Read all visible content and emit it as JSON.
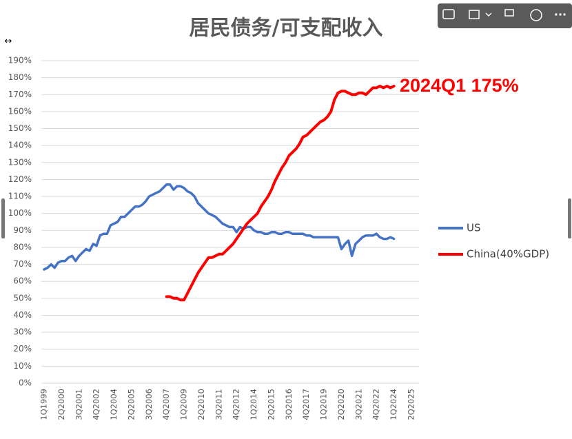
{
  "chart_data": {
    "type": "line",
    "title": "居民债务/可支配收入",
    "annotation": "2024Q1 175%",
    "categories": [
      "1Q1999",
      null,
      null,
      null,
      null,
      "2Q2000",
      null,
      null,
      null,
      null,
      "3Q2001",
      null,
      null,
      null,
      null,
      "4Q2002",
      null,
      null,
      null,
      null,
      "1Q2004",
      null,
      null,
      null,
      null,
      "2Q2005",
      null,
      null,
      null,
      null,
      "3Q2006",
      null,
      null,
      null,
      null,
      "4Q2007",
      null,
      null,
      null,
      null,
      "1Q2009",
      null,
      null,
      null,
      null,
      "2Q2010",
      null,
      null,
      null,
      null,
      "3Q2011",
      null,
      null,
      null,
      null,
      "4Q2012",
      null,
      null,
      null,
      null,
      "1Q2014",
      null,
      null,
      null,
      null,
      "2Q2015",
      null,
      null,
      null,
      null,
      "3Q2016",
      null,
      null,
      null,
      null,
      "4Q2017",
      null,
      null,
      null,
      null,
      "1Q2019",
      null,
      null,
      null,
      null,
      "2Q2020",
      null,
      null,
      null,
      null,
      "3Q2021",
      null,
      null,
      null,
      null,
      "4Q2022",
      null,
      null,
      null,
      null,
      "1Q2024",
      null,
      null,
      null,
      null,
      "2Q2025"
    ],
    "series": [
      {
        "name": "US",
        "color": "#4472c4",
        "values": [
          67,
          68,
          70,
          68,
          71,
          72,
          72,
          74,
          75,
          72,
          75,
          77,
          79,
          78,
          82,
          81,
          87,
          88,
          88,
          93,
          94,
          95,
          98,
          98,
          100,
          102,
          104,
          104,
          105,
          107,
          110,
          111,
          112,
          113,
          115,
          117,
          117,
          114,
          116,
          116,
          115,
          113,
          112,
          110,
          106,
          104,
          102,
          100,
          99,
          98,
          96,
          94,
          93,
          92,
          92,
          89,
          92,
          91,
          92,
          92,
          90,
          89,
          89,
          88,
          88,
          89,
          89,
          88,
          88,
          89,
          89,
          88,
          88,
          88,
          88,
          87,
          87,
          86,
          86,
          86,
          86,
          86,
          86,
          86,
          86,
          79,
          82,
          84,
          75,
          82,
          84,
          86,
          87,
          87,
          87,
          88,
          86,
          85,
          85,
          86,
          85,
          null,
          null,
          null,
          null,
          null
        ]
      },
      {
        "name": "China(40%GDP)",
        "color": "#ff0000",
        "values": [
          null,
          null,
          null,
          null,
          null,
          null,
          null,
          null,
          null,
          null,
          null,
          null,
          null,
          null,
          null,
          null,
          null,
          null,
          null,
          null,
          null,
          null,
          null,
          null,
          null,
          null,
          null,
          null,
          null,
          null,
          null,
          null,
          null,
          null,
          null,
          51,
          51,
          50,
          50,
          49,
          49,
          53,
          57,
          61,
          65,
          68,
          71,
          74,
          74,
          75,
          76,
          76,
          78,
          80,
          82,
          85,
          88,
          91,
          94,
          96,
          98,
          100,
          104,
          107,
          110,
          114,
          119,
          123,
          127,
          130,
          134,
          136,
          138,
          141,
          145,
          146,
          148,
          150,
          152,
          154,
          155,
          157,
          160,
          167,
          171,
          172,
          172,
          171,
          170,
          170,
          171,
          171,
          170,
          172,
          174,
          174,
          175,
          174,
          175,
          174,
          175,
          null,
          null,
          null,
          null,
          null
        ]
      }
    ],
    "ylim": [
      0,
      190
    ],
    "yticks": [
      {
        "value": 0,
        "label": "0%"
      },
      {
        "value": 10,
        "label": "10%"
      },
      {
        "value": 20,
        "label": "20%"
      },
      {
        "value": 30,
        "label": "30%"
      },
      {
        "value": 40,
        "label": "40%"
      },
      {
        "value": 50,
        "label": "50%"
      },
      {
        "value": 60,
        "label": "60%"
      },
      {
        "value": 70,
        "label": "70%"
      },
      {
        "value": 80,
        "label": "80%"
      },
      {
        "value": 90,
        "label": "90%"
      },
      {
        "value": 100,
        "label": "100%"
      },
      {
        "value": 110,
        "label": "110%"
      },
      {
        "value": 120,
        "label": "120%"
      },
      {
        "value": 130,
        "label": "130%"
      },
      {
        "value": 140,
        "label": "140%"
      },
      {
        "value": 150,
        "label": "150%"
      },
      {
        "value": 160,
        "label": "160%"
      },
      {
        "value": 170,
        "label": "170%"
      },
      {
        "value": 180,
        "label": "180%"
      },
      {
        "value": 190,
        "label": "190%"
      }
    ],
    "grid": true,
    "legend": "right"
  }
}
